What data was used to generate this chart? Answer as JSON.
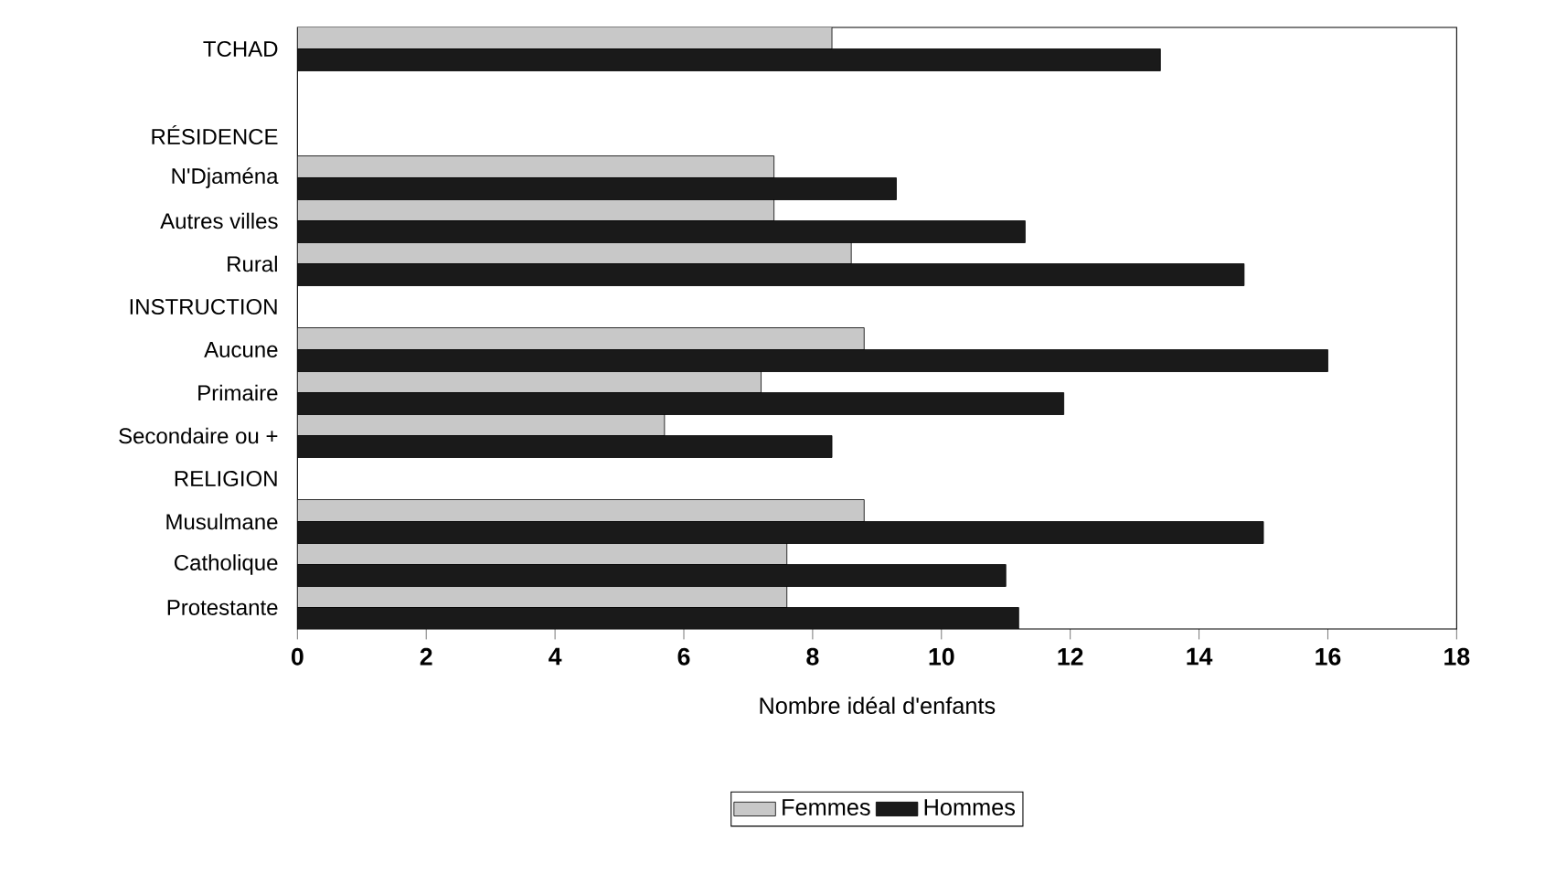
{
  "chart_data": {
    "type": "bar",
    "orientation": "horizontal",
    "xlabel": "Nombre idéal d'enfants",
    "categories": [
      "TCHAD",
      null,
      "RÉSIDENCE",
      "N'Djaména",
      "Autres villes",
      "Rural",
      "INSTRUCTION",
      "Aucune",
      "Primaire",
      "Secondaire ou +",
      "RELIGION",
      "Musulmane",
      "Catholique",
      "Protestante"
    ],
    "series": [
      {
        "name": "Femmes",
        "color": "#c8c8c8",
        "values": [
          8.3,
          null,
          null,
          7.4,
          7.4,
          8.6,
          null,
          8.8,
          7.2,
          5.7,
          null,
          8.8,
          7.6,
          7.6
        ]
      },
      {
        "name": "Hommes",
        "color": "#1a1a1a",
        "values": [
          13.4,
          null,
          null,
          9.3,
          11.3,
          14.7,
          null,
          16.0,
          11.9,
          8.3,
          null,
          15.0,
          11.0,
          11.2
        ]
      }
    ],
    "xlim": [
      0,
      18
    ],
    "xticks": [
      0,
      2,
      4,
      6,
      8,
      10,
      12,
      14,
      16,
      18
    ],
    "grid": false,
    "legend": "bottom"
  }
}
